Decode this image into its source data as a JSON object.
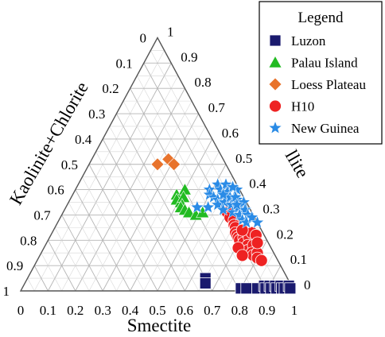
{
  "chart_data": {
    "type": "scatter",
    "subtype": "ternary",
    "title": "",
    "axes": {
      "bottom": {
        "label": "Smectite",
        "range": [
          0,
          1
        ]
      },
      "left": {
        "label": "Kaolinite+Chlorite",
        "range": [
          0,
          1
        ]
      },
      "right": {
        "label": "Illite",
        "range": [
          0,
          1
        ]
      }
    },
    "axis_title_left": "Kaolinite+Chlorite",
    "axis_title_bottom": "Smectite",
    "axis_title_right_visible": "llite",
    "tick_labels": [
      "0",
      "0.1",
      "0.2",
      "0.3",
      "0.4",
      "0.5",
      "0.6",
      "0.7",
      "0.8",
      "0.9",
      "1"
    ],
    "grid": true,
    "legend": {
      "title": "Legend",
      "position": "top-right",
      "entries": [
        {
          "name": "Luzon",
          "marker": "square",
          "color": "#1a1a6e"
        },
        {
          "name": "Palau Island",
          "marker": "triangle",
          "color": "#22bb22"
        },
        {
          "name": "Loess Plateau",
          "marker": "diamond",
          "color": "#e8732c"
        },
        {
          "name": "H10",
          "marker": "circle",
          "color": "#ee2222"
        },
        {
          "name": "New Guinea",
          "marker": "star",
          "color": "#2a8be6"
        }
      ]
    },
    "series": [
      {
        "name": "Luzon",
        "points": [
          {
            "smectite": 0.65,
            "illite": 0.05
          },
          {
            "smectite": 0.66,
            "illite": 0.03
          },
          {
            "smectite": 0.8,
            "illite": 0.01
          },
          {
            "smectite": 0.82,
            "illite": 0.01
          },
          {
            "smectite": 0.86,
            "illite": 0.01
          },
          {
            "smectite": 0.88,
            "illite": 0.02
          },
          {
            "smectite": 0.89,
            "illite": 0.01
          },
          {
            "smectite": 0.9,
            "illite": 0.02
          },
          {
            "smectite": 0.91,
            "illite": 0.01
          },
          {
            "smectite": 0.92,
            "illite": 0.02
          },
          {
            "smectite": 0.93,
            "illite": 0.01
          },
          {
            "smectite": 0.94,
            "illite": 0.02
          },
          {
            "smectite": 0.95,
            "illite": 0.01
          },
          {
            "smectite": 0.96,
            "illite": 0.01
          },
          {
            "smectite": 0.97,
            "illite": 0.02
          },
          {
            "smectite": 0.98,
            "illite": 0.01
          }
        ]
      },
      {
        "name": "Palau Island",
        "points": [
          {
            "smectite": 0.38,
            "illite": 0.38
          },
          {
            "smectite": 0.39,
            "illite": 0.36
          },
          {
            "smectite": 0.4,
            "illite": 0.4
          },
          {
            "smectite": 0.41,
            "illite": 0.35
          },
          {
            "smectite": 0.41,
            "illite": 0.37
          },
          {
            "smectite": 0.42,
            "illite": 0.34
          },
          {
            "smectite": 0.42,
            "illite": 0.33
          },
          {
            "smectite": 0.44,
            "illite": 0.32
          },
          {
            "smectite": 0.46,
            "illite": 0.31
          },
          {
            "smectite": 0.49,
            "illite": 0.3
          },
          {
            "smectite": 0.51,
            "illite": 0.31
          }
        ]
      },
      {
        "name": "Loess Plateau",
        "points": [
          {
            "smectite": 0.25,
            "illite": 0.5
          },
          {
            "smectite": 0.28,
            "illite": 0.52
          },
          {
            "smectite": 0.31,
            "illite": 0.5
          }
        ]
      },
      {
        "name": "H10",
        "points": [
          {
            "smectite": 0.6,
            "illite": 0.31
          },
          {
            "smectite": 0.62,
            "illite": 0.29
          },
          {
            "smectite": 0.64,
            "illite": 0.28
          },
          {
            "smectite": 0.65,
            "illite": 0.26
          },
          {
            "smectite": 0.66,
            "illite": 0.25
          },
          {
            "smectite": 0.67,
            "illite": 0.23
          },
          {
            "smectite": 0.68,
            "illite": 0.22
          },
          {
            "smectite": 0.69,
            "illite": 0.21
          },
          {
            "smectite": 0.7,
            "illite": 0.2
          },
          {
            "smectite": 0.71,
            "illite": 0.21
          },
          {
            "smectite": 0.72,
            "illite": 0.19
          },
          {
            "smectite": 0.73,
            "illite": 0.21
          },
          {
            "smectite": 0.74,
            "illite": 0.18
          },
          {
            "smectite": 0.75,
            "illite": 0.16
          },
          {
            "smectite": 0.76,
            "illite": 0.18
          },
          {
            "smectite": 0.77,
            "illite": 0.15
          },
          {
            "smectite": 0.78,
            "illite": 0.14
          },
          {
            "smectite": 0.79,
            "illite": 0.15
          },
          {
            "smectite": 0.8,
            "illite": 0.13
          },
          {
            "smectite": 0.82,
            "illite": 0.12
          },
          {
            "smectite": 0.73,
            "illite": 0.23
          },
          {
            "smectite": 0.75,
            "illite": 0.22
          },
          {
            "smectite": 0.77,
            "illite": 0.19
          },
          {
            "smectite": 0.69,
            "illite": 0.24
          },
          {
            "smectite": 0.71,
            "illite": 0.17
          },
          {
            "smectite": 0.74,
            "illite": 0.14
          }
        ]
      },
      {
        "name": "New Guinea",
        "points": [
          {
            "smectite": 0.49,
            "illite": 0.4
          },
          {
            "smectite": 0.5,
            "illite": 0.38
          },
          {
            "smectite": 0.51,
            "illite": 0.42
          },
          {
            "smectite": 0.52,
            "illite": 0.37
          },
          {
            "smectite": 0.53,
            "illite": 0.4
          },
          {
            "smectite": 0.54,
            "illite": 0.36
          },
          {
            "smectite": 0.54,
            "illite": 0.42
          },
          {
            "smectite": 0.55,
            "illite": 0.34
          },
          {
            "smectite": 0.56,
            "illite": 0.39
          },
          {
            "smectite": 0.57,
            "illite": 0.35
          },
          {
            "smectite": 0.58,
            "illite": 0.37
          },
          {
            "smectite": 0.58,
            "illite": 0.32
          },
          {
            "smectite": 0.59,
            "illite": 0.4
          },
          {
            "smectite": 0.6,
            "illite": 0.34
          },
          {
            "smectite": 0.61,
            "illite": 0.36
          },
          {
            "smectite": 0.62,
            "illite": 0.31
          },
          {
            "smectite": 0.63,
            "illite": 0.33
          },
          {
            "smectite": 0.64,
            "illite": 0.35
          },
          {
            "smectite": 0.65,
            "illite": 0.3
          },
          {
            "smectite": 0.66,
            "illite": 0.32
          },
          {
            "smectite": 0.67,
            "illite": 0.28
          },
          {
            "smectite": 0.68,
            "illite": 0.3
          },
          {
            "smectite": 0.69,
            "illite": 0.27
          },
          {
            "smectite": 0.7,
            "illite": 0.29
          },
          {
            "smectite": 0.52,
            "illite": 0.33
          },
          {
            "smectite": 0.55,
            "illite": 0.38
          },
          {
            "smectite": 0.57,
            "illite": 0.41
          },
          {
            "smectite": 0.6,
            "illite": 0.37
          },
          {
            "smectite": 0.62,
            "illite": 0.34
          },
          {
            "smectite": 0.73,
            "illite": 0.27
          },
          {
            "smectite": 0.48,
            "illite": 0.33
          }
        ]
      }
    ]
  }
}
